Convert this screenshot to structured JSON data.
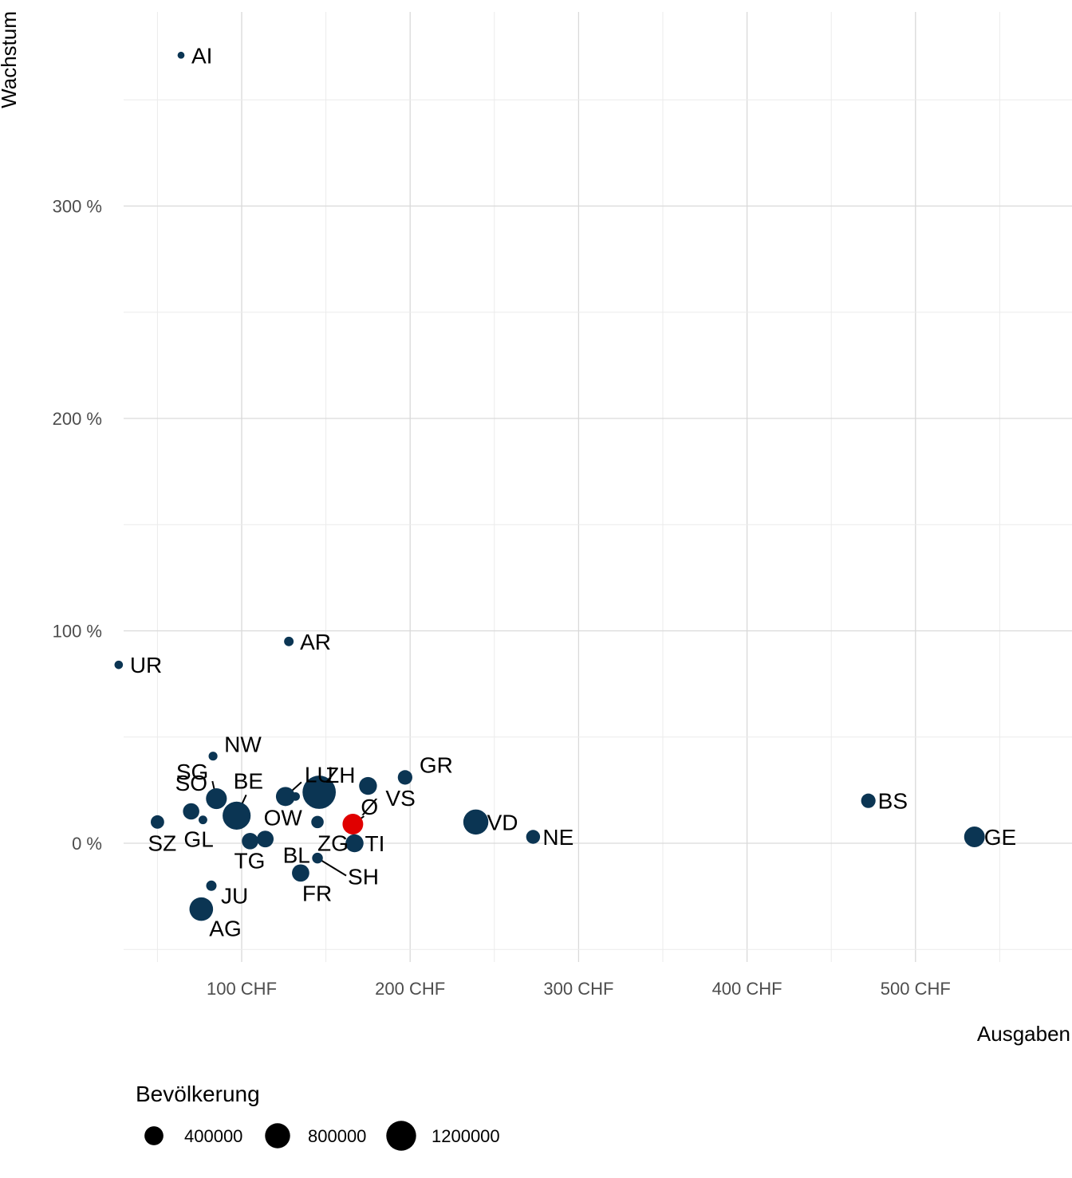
{
  "chart_data": {
    "type": "scatter",
    "xlabel": "Ausgaben",
    "ylabel": "Wachstum",
    "xlim": [
      43,
      590
    ],
    "ylim": [
      -50,
      391
    ],
    "x_ticks": [
      {
        "value": 100,
        "label": "100 CHF"
      },
      {
        "value": 200,
        "label": "200 CHF"
      },
      {
        "value": 300,
        "label": "300 CHF"
      },
      {
        "value": 400,
        "label": "400 CHF"
      },
      {
        "value": 500,
        "label": "500 CHF"
      }
    ],
    "y_ticks": [
      {
        "value": 0,
        "label": "0 %"
      },
      {
        "value": 100,
        "label": "100 %"
      },
      {
        "value": 200,
        "label": "200 %"
      },
      {
        "value": 300,
        "label": "300 %"
      }
    ],
    "grid": true,
    "point_color": "#0b3553",
    "highlight_color": "#e00000",
    "size_legend": {
      "title": "Bevölkerung",
      "breaks": [
        {
          "value": 400000,
          "label": "400000"
        },
        {
          "value": 800000,
          "label": "800000"
        },
        {
          "value": 1200000,
          "label": "1200000"
        }
      ]
    },
    "points": [
      {
        "label": "AI",
        "x": 64,
        "y": 371,
        "pop": 16000
      },
      {
        "label": "AR",
        "x": 128,
        "y": 95,
        "pop": 55000
      },
      {
        "label": "UR",
        "x": 27,
        "y": 84,
        "pop": 36000
      },
      {
        "label": "NW",
        "x": 83,
        "y": 41,
        "pop": 43000
      },
      {
        "label": "GR",
        "x": 197,
        "y": 31,
        "pop": 200000
      },
      {
        "label": "VS",
        "x": 175,
        "y": 27,
        "pop": 345000
      },
      {
        "label": "ZH",
        "x": 146,
        "y": 24,
        "pop": 1540000
      },
      {
        "label": "SG",
        "x": 85,
        "y": 21,
        "pop": 510000
      },
      {
        "label": "LU",
        "x": 126,
        "y": 22,
        "pop": 410000
      },
      {
        "label": "BE",
        "x": 97,
        "y": 13,
        "pop": 1040000
      },
      {
        "label": "SO",
        "x": 70,
        "y": 15,
        "pop": 275000
      },
      {
        "label": "BS",
        "x": 472,
        "y": 20,
        "pop": 196000
      },
      {
        "label": "SZ",
        "x": 50,
        "y": 10,
        "pop": 160000
      },
      {
        "label": "GL",
        "x": 77,
        "y": 11,
        "pop": 40000
      },
      {
        "label": "OW",
        "x": 132,
        "y": 22,
        "pop": 38000
      },
      {
        "label": "ZG",
        "x": 145,
        "y": 10,
        "pop": 127000
      },
      {
        "label": "Ø",
        "x": 166,
        "y": 9,
        "pop": 500000,
        "highlight": true
      },
      {
        "label": "VD",
        "x": 239,
        "y": 10,
        "pop": 800000
      },
      {
        "label": "NE",
        "x": 273,
        "y": 3,
        "pop": 176000
      },
      {
        "label": "GE",
        "x": 535,
        "y": 3,
        "pop": 500000
      },
      {
        "label": "TG",
        "x": 105,
        "y": 1,
        "pop": 280000
      },
      {
        "label": "BL",
        "x": 114,
        "y": 2,
        "pop": 290000
      },
      {
        "label": "TI",
        "x": 167,
        "y": 0,
        "pop": 350000
      },
      {
        "label": "SH",
        "x": 145,
        "y": -7,
        "pop": 82000
      },
      {
        "label": "FR",
        "x": 135,
        "y": -14,
        "pop": 320000
      },
      {
        "label": "JU",
        "x": 82,
        "y": -20,
        "pop": 73000
      },
      {
        "label": "AG",
        "x": 76,
        "y": -31,
        "pop": 690000
      }
    ]
  }
}
